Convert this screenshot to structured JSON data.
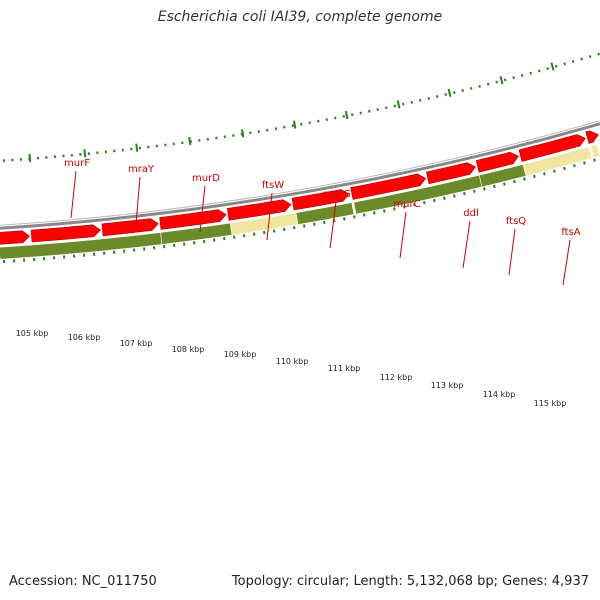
{
  "title": "Escherichia coli IAI39, complete genome",
  "footer": {
    "accession": "Accession: NC_011750",
    "summary": "Topology: circular; Length: 5,132,068 bp; Genes: 4,937"
  },
  "colors": {
    "gene_label": "#cc0000",
    "feature_dark": "#6b8a2a",
    "feature_light": "#f0e6a0",
    "gene_arrow": "#ff0000",
    "backbone": "#888888",
    "tick": "#2e7d1e"
  },
  "gene_labels": [
    {
      "name": "murF"
    },
    {
      "name": "mraY"
    },
    {
      "name": "murD"
    },
    {
      "name": "ftsW"
    },
    {
      "name": "murG"
    },
    {
      "name": "murC"
    },
    {
      "name": "ddl"
    },
    {
      "name": "ftsQ"
    },
    {
      "name": "ftsA"
    }
  ],
  "kbp_labels": [
    "105 kbp",
    "106 kbp",
    "107 kbp",
    "108 kbp",
    "109 kbp",
    "110 kbp",
    "111 kbp",
    "112 kbp",
    "113 kbp",
    "114 kbp",
    "115 kbp"
  ]
}
